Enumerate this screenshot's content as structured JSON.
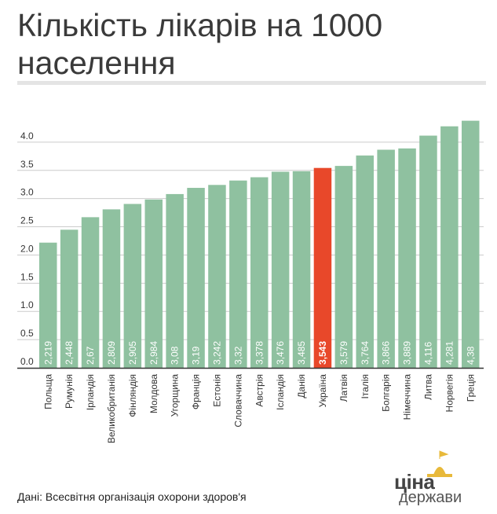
{
  "title": "Кількість лікарів на 1000 населення",
  "source": "Дані: Всесвітня організація охорони здоров'я",
  "logo": {
    "line1": "ціна",
    "line2": "держави"
  },
  "colors": {
    "bar": "#8fc1a0",
    "highlight": "#e8482a",
    "grid": "#cccccc",
    "axis": "#333333",
    "text": "#333333",
    "value_text": "#ffffff",
    "title": "#3a3a3a",
    "logo_accent": "#e8b93a"
  },
  "chart_data": {
    "type": "bar",
    "title": "Кількість лікарів на 1000 населення",
    "xlabel": "",
    "ylabel": "",
    "ylim": [
      0,
      4.5
    ],
    "yticks": [
      0.0,
      0.5,
      1.0,
      1.5,
      2.0,
      2.5,
      3.0,
      3.5,
      4.0
    ],
    "ytick_labels": [
      "0.0",
      "0.5",
      "1.0",
      "1.5",
      "2.0",
      "2.5",
      "3.0",
      "3.5",
      "4.0"
    ],
    "grid": true,
    "highlight_category": "Україна",
    "categories": [
      "Польща",
      "Румунія",
      "Ірландія",
      "Великобританія",
      "Фінляндія",
      "Молдова",
      "Угорщина",
      "Франція",
      "Естонія",
      "Словаччина",
      "Австрія",
      "Ісландія",
      "Данія",
      "Україна",
      "Латвія",
      "Італія",
      "Болгарія",
      "Німеччина",
      "Литва",
      "Норвегія",
      "Греція"
    ],
    "values": [
      2.219,
      2.448,
      2.67,
      2.809,
      2.905,
      2.984,
      3.08,
      3.19,
      3.242,
      3.32,
      3.378,
      3.476,
      3.485,
      3.543,
      3.579,
      3.764,
      3.866,
      3.889,
      4.116,
      4.281,
      4.38
    ],
    "value_labels": [
      "2,219",
      "2,448",
      "2,67",
      "2,809",
      "2,905",
      "2,984",
      "3,08",
      "3,19",
      "3,242",
      "3,32",
      "3,378",
      "3,476",
      "3,485",
      "3,543",
      "3,579",
      "3,764",
      "3,866",
      "3,889",
      "4,116",
      "4,281",
      "4,38"
    ]
  }
}
